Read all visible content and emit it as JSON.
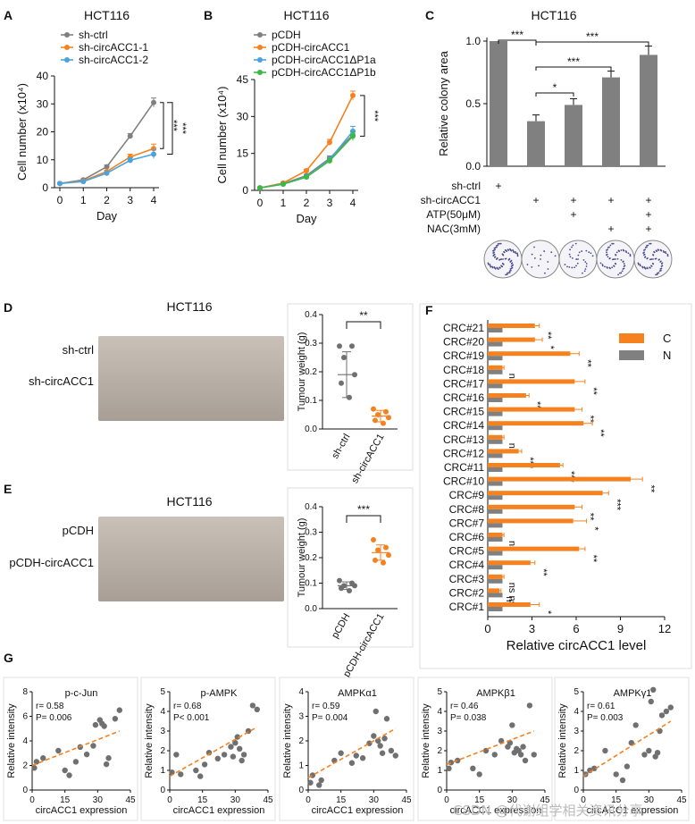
{
  "colors": {
    "grey": "#808080",
    "orange": "#F5821F",
    "blue": "#4AA3DF",
    "green": "#3DB843",
    "photo_bg": "#B7ADA4",
    "tumour": "#D4A58E",
    "dots": "#707070"
  },
  "watermark": "CSDN @代谢组学相关资讯分享",
  "chart_data": [
    {
      "panel": "A",
      "type": "line",
      "title": "HCT116",
      "xlabel": "Day",
      "ylabel": "Cell number (x10⁴)",
      "ylim": [
        0,
        40
      ],
      "yticks": [
        0,
        10,
        20,
        30,
        40
      ],
      "x": [
        0,
        1,
        2,
        3,
        4
      ],
      "series": [
        {
          "name": "sh-ctrl",
          "color": "#808080",
          "values": [
            1.5,
            2.8,
            7.5,
            18.5,
            30.5
          ],
          "err": [
            0.3,
            0.4,
            0.6,
            0.9,
            1.6
          ]
        },
        {
          "name": "sh-circACC1-1",
          "color": "#F5821F",
          "values": [
            1.5,
            2.4,
            5.8,
            11.0,
            14.0
          ],
          "err": [
            0.3,
            0.4,
            0.5,
            1.0,
            1.6
          ]
        },
        {
          "name": "sh-circACC1-2",
          "color": "#4AA3DF",
          "values": [
            1.5,
            2.2,
            5.2,
            9.8,
            12.0
          ],
          "err": [
            0.3,
            0.3,
            0.5,
            0.9,
            1.5
          ]
        }
      ],
      "significance": [
        "***",
        "***"
      ]
    },
    {
      "panel": "B",
      "type": "line",
      "title": "HCT116",
      "xlabel": "Day",
      "ylabel": "Cell number (x10⁴)",
      "ylim": [
        0,
        45
      ],
      "yticks": [
        0,
        15,
        30,
        45
      ],
      "x": [
        0,
        1,
        2,
        3,
        4
      ],
      "series": [
        {
          "name": "pCDH",
          "color": "#808080",
          "values": [
            1.0,
            2.7,
            6.0,
            13.0,
            22.5
          ],
          "err": [
            0.3,
            0.3,
            0.5,
            1.0,
            1.8
          ]
        },
        {
          "name": "pCDH-circACC1",
          "color": "#F5821F",
          "values": [
            1.0,
            3.0,
            8.0,
            19.5,
            38.5
          ],
          "err": [
            0.3,
            0.4,
            0.6,
            1.2,
            1.8
          ]
        },
        {
          "name": "pCDH-circACC1ΔP1a",
          "color": "#4AA3DF",
          "values": [
            1.0,
            2.6,
            5.6,
            12.5,
            24.0
          ],
          "err": [
            0.3,
            0.3,
            0.5,
            1.0,
            2.0
          ]
        },
        {
          "name": "pCDH-circACC1ΔP1b",
          "color": "#3DB843",
          "values": [
            1.0,
            2.5,
            5.4,
            12.0,
            22.0
          ],
          "err": [
            0.3,
            0.3,
            0.5,
            1.0,
            1.8
          ]
        }
      ],
      "significance": [
        "***"
      ]
    },
    {
      "panel": "C",
      "type": "bar",
      "title": "HCT116",
      "ylabel": "Relative colony area",
      "ylim": [
        0,
        1.0
      ],
      "yticks": [
        "0.0",
        "0.5",
        "1.0"
      ],
      "values": [
        1.0,
        0.36,
        0.49,
        0.71,
        0.89
      ],
      "err": [
        0,
        0.05,
        0.05,
        0.05,
        0.07
      ],
      "color": "#808080",
      "conditions": [
        {
          "label": "sh-ctrl",
          "marks": [
            "+",
            "",
            "",
            "",
            ""
          ]
        },
        {
          "label": "sh-circACC1",
          "marks": [
            "",
            "+",
            "+",
            "+",
            "+"
          ]
        },
        {
          "label": "ATP(50μM)",
          "marks": [
            "",
            "",
            "+",
            "",
            "+"
          ]
        },
        {
          "label": "NAC(3mM)",
          "marks": [
            "",
            "",
            "",
            "+",
            "+"
          ]
        }
      ],
      "significance": [
        "***",
        "***",
        "***",
        "*"
      ]
    },
    {
      "panel": "D",
      "type": "scatter",
      "title": "HCT116",
      "ylabel": "Tumour weight (g)",
      "ylim": [
        0,
        0.4
      ],
      "yticks": [
        "0.0",
        "0.1",
        "0.2",
        "0.3",
        "0.4"
      ],
      "groups": [
        {
          "name": "sh-ctrl",
          "color": "#707070",
          "points": [
            0.29,
            0.29,
            0.25,
            0.19,
            0.16,
            0.11
          ],
          "mean": 0.19,
          "sd": 0.08
        },
        {
          "name": "sh-circACC1",
          "color": "#F5821F",
          "points": [
            0.07,
            0.06,
            0.05,
            0.04,
            0.03,
            0.02
          ],
          "mean": 0.045,
          "sd": 0.02
        }
      ],
      "significance": "**",
      "photo_labels": [
        "sh-ctrl",
        "sh-circACC1"
      ]
    },
    {
      "panel": "E",
      "type": "scatter",
      "title": "HCT116",
      "ylabel": "Tumour weight (g)",
      "ylim": [
        0,
        0.4
      ],
      "yticks": [
        "0.0",
        "0.1",
        "0.2",
        "0.3",
        "0.4"
      ],
      "groups": [
        {
          "name": "pCDH",
          "color": "#707070",
          "points": [
            0.11,
            0.1,
            0.09,
            0.09,
            0.08,
            0.07
          ],
          "mean": 0.09,
          "sd": 0.015
        },
        {
          "name": "pCDH-circACC1",
          "color": "#F5821F",
          "points": [
            0.27,
            0.24,
            0.23,
            0.21,
            0.19,
            0.18
          ],
          "mean": 0.22,
          "sd": 0.03
        }
      ],
      "significance": "***",
      "photo_labels": [
        "pCDH",
        "pCDH-circACC1"
      ]
    },
    {
      "panel": "F",
      "type": "bar",
      "orientation": "horizontal",
      "xlabel": "Relative circACC1 level",
      "xlim": [
        0,
        12
      ],
      "xticks": [
        0,
        3,
        6,
        9,
        12
      ],
      "legend": [
        {
          "name": "C",
          "color": "#F5821F"
        },
        {
          "name": "N",
          "color": "#808080"
        }
      ],
      "categories": [
        "CRC#21",
        "CRC#20",
        "CRC#19",
        "CRC#18",
        "CRC#17",
        "CRC#16",
        "CRC#15",
        "CRC#14",
        "CRC#13",
        "CRC#12",
        "CRC#11",
        "CRC#10",
        "CRC#9",
        "CRC#8",
        "CRC#7",
        "CRC#6",
        "CRC#5",
        "CRC#4",
        "CRC#3",
        "CRC#2",
        "CRC#1"
      ],
      "C": [
        3.2,
        3.2,
        5.6,
        1.0,
        5.9,
        2.6,
        5.9,
        6.5,
        1.0,
        2.1,
        4.9,
        9.7,
        7.8,
        5.9,
        5.8,
        1.0,
        6.2,
        2.9,
        1.0,
        0.8,
        2.9
      ],
      "C_err": [
        0.3,
        0.5,
        0.6,
        0.1,
        0.7,
        0.2,
        0.5,
        0.6,
        0.1,
        0.2,
        0.2,
        0.8,
        0.4,
        0.5,
        0.9,
        0.1,
        0.4,
        0.3,
        0.1,
        0.1,
        0.6
      ],
      "N": [
        1.0,
        1.0,
        1.0,
        1.0,
        1.0,
        1.0,
        1.0,
        1.0,
        1.0,
        1.0,
        1.0,
        1.0,
        1.0,
        1.0,
        1.0,
        1.0,
        1.0,
        1.0,
        1.0,
        1.0,
        1.0
      ],
      "sig": [
        "**",
        "*",
        "**",
        "ns",
        "**",
        "**",
        "**",
        "**",
        "ns",
        "***",
        "***",
        "**",
        "***",
        "**",
        "*",
        "ns",
        "**",
        "**",
        "ns ns",
        "ns",
        "*"
      ]
    },
    {
      "panel": "G",
      "type": "scatter",
      "subplots": [
        {
          "title": "p-c-Jun",
          "r": "r= 0.58",
          "p": "P= 0.006",
          "ylim": [
            0,
            8
          ],
          "yticks": [
            0,
            2,
            4,
            6,
            8
          ],
          "points": [
            [
              1,
              1.8
            ],
            [
              2,
              2.3
            ],
            [
              5,
              2.6
            ],
            [
              12,
              3.2
            ],
            [
              15,
              1.6
            ],
            [
              17,
              1.2
            ],
            [
              20,
              2.3
            ],
            [
              22,
              3.5
            ],
            [
              25,
              2.9
            ],
            [
              28,
              3.6
            ],
            [
              29,
              5.3
            ],
            [
              31,
              5.7
            ],
            [
              32,
              5.4
            ],
            [
              33,
              5.2
            ],
            [
              34,
              2.1
            ],
            [
              35,
              2.6
            ],
            [
              38,
              5.8
            ],
            [
              40,
              6.5
            ]
          ],
          "fit": [
            [
              0,
              2.0
            ],
            [
              40,
              4.8
            ]
          ]
        },
        {
          "title": "p-AMPK",
          "r": "r= 0.68",
          "p": "P< 0.001",
          "ylim": [
            0,
            5
          ],
          "yticks": [
            0,
            1,
            2,
            3,
            4,
            5
          ],
          "points": [
            [
              1,
              0.9
            ],
            [
              3,
              1.8
            ],
            [
              5,
              0.8
            ],
            [
              12,
              1.0
            ],
            [
              14,
              0.7
            ],
            [
              16,
              1.3
            ],
            [
              18,
              1.9
            ],
            [
              22,
              1.6
            ],
            [
              25,
              1.8
            ],
            [
              28,
              2.2
            ],
            [
              29,
              1.7
            ],
            [
              30,
              2.4
            ],
            [
              31,
              2.7
            ],
            [
              32,
              2.1
            ],
            [
              33,
              1.5
            ],
            [
              34,
              1.8
            ],
            [
              36,
              3.0
            ],
            [
              38,
              4.3
            ],
            [
              40,
              4.1
            ]
          ],
          "fit": [
            [
              0,
              0.7
            ],
            [
              40,
              3.2
            ]
          ]
        },
        {
          "title": "AMPKα1",
          "r": "r= 0.59",
          "p": "P= 0.004",
          "ylim": [
            0,
            4
          ],
          "yticks": [
            0,
            1,
            2,
            3,
            4
          ],
          "points": [
            [
              1,
              0.3
            ],
            [
              2,
              0.6
            ],
            [
              5,
              0.2
            ],
            [
              6,
              0.4
            ],
            [
              12,
              1.2
            ],
            [
              15,
              1.5
            ],
            [
              20,
              1.1
            ],
            [
              22,
              1.4
            ],
            [
              25,
              1.3
            ],
            [
              28,
              1.9
            ],
            [
              30,
              2.2
            ],
            [
              31,
              3.2
            ],
            [
              32,
              2.0
            ],
            [
              33,
              1.8
            ],
            [
              34,
              1.5
            ],
            [
              35,
              2.1
            ],
            [
              36,
              2.9
            ],
            [
              38,
              1.6
            ],
            [
              40,
              1.4
            ]
          ],
          "fit": [
            [
              0,
              0.5
            ],
            [
              40,
              2.5
            ]
          ]
        },
        {
          "title": "AMPKβ1",
          "r": "r= 0.46",
          "p": "P= 0.038",
          "ylim": [
            0,
            5
          ],
          "yticks": [
            0,
            1,
            2,
            3,
            4,
            5
          ],
          "points": [
            [
              1,
              1.1
            ],
            [
              2,
              1.4
            ],
            [
              5,
              1.5
            ],
            [
              12,
              1.1
            ],
            [
              15,
              0.8
            ],
            [
              18,
              2.0
            ],
            [
              22,
              1.8
            ],
            [
              25,
              2.5
            ],
            [
              28,
              2.2
            ],
            [
              29,
              2.4
            ],
            [
              30,
              3.3
            ],
            [
              31,
              1.9
            ],
            [
              32,
              2.1
            ],
            [
              33,
              2.0
            ],
            [
              34,
              1.8
            ],
            [
              35,
              2.2
            ],
            [
              36,
              1.5
            ],
            [
              38,
              4.3
            ],
            [
              40,
              1.8
            ]
          ],
          "fit": [
            [
              0,
              1.3
            ],
            [
              40,
              3.0
            ]
          ]
        },
        {
          "title": "AMPKγ1",
          "r": "r= 0.61",
          "p": "P= 0.003",
          "ylim": [
            0,
            5
          ],
          "yticks": [
            0,
            1,
            2,
            3,
            4,
            5
          ],
          "points": [
            [
              1,
              0.8
            ],
            [
              3,
              1.0
            ],
            [
              5,
              1.1
            ],
            [
              10,
              2.0
            ],
            [
              15,
              0.8
            ],
            [
              18,
              0.5
            ],
            [
              20,
              1.2
            ],
            [
              22,
              2.4
            ],
            [
              24,
              3.3
            ],
            [
              28,
              1.8
            ],
            [
              30,
              2.0
            ],
            [
              31,
              4.5
            ],
            [
              32,
              5.1
            ],
            [
              33,
              1.7
            ],
            [
              34,
              1.9
            ],
            [
              35,
              3.0
            ],
            [
              36,
              3.8
            ],
            [
              38,
              4.0
            ],
            [
              40,
              4.2
            ]
          ],
          "fit": [
            [
              0,
              0.7
            ],
            [
              40,
              3.5
            ]
          ]
        }
      ],
      "xlabel": "circACC1 expression",
      "ylabel": "Relative intensity",
      "xlim": [
        0,
        45
      ],
      "xticks": [
        0,
        15,
        30,
        45
      ]
    }
  ]
}
